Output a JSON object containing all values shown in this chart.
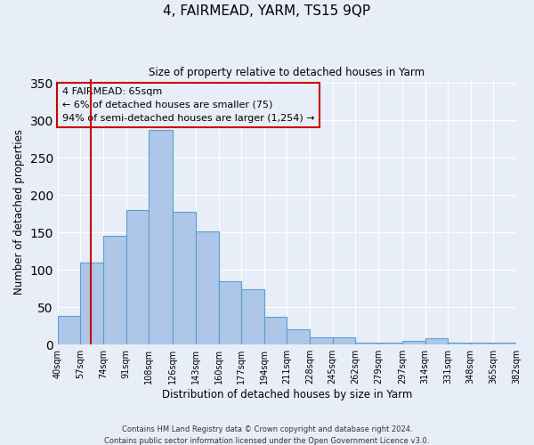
{
  "title": "4, FAIRMEAD, YARM, TS15 9QP",
  "subtitle": "Size of property relative to detached houses in Yarm",
  "xlabel": "Distribution of detached houses by size in Yarm",
  "ylabel": "Number of detached properties",
  "bin_labels": [
    "40sqm",
    "57sqm",
    "74sqm",
    "91sqm",
    "108sqm",
    "126sqm",
    "143sqm",
    "160sqm",
    "177sqm",
    "194sqm",
    "211sqm",
    "228sqm",
    "245sqm",
    "262sqm",
    "279sqm",
    "297sqm",
    "314sqm",
    "331sqm",
    "348sqm",
    "365sqm",
    "382sqm"
  ],
  "bar_heights": [
    38,
    110,
    145,
    180,
    287,
    178,
    152,
    85,
    74,
    37,
    20,
    10,
    10,
    3,
    3,
    5,
    8,
    3,
    3,
    3
  ],
  "bin_edges": [
    40,
    57,
    74,
    91,
    108,
    126,
    143,
    160,
    177,
    194,
    211,
    228,
    245,
    262,
    279,
    297,
    314,
    331,
    348,
    365,
    382
  ],
  "bar_color": "#aec6e8",
  "bar_edge_color": "#5a9fd4",
  "vline_x": 65,
  "vline_color": "#cc0000",
  "ylim": [
    0,
    355
  ],
  "yticks": [
    0,
    50,
    100,
    150,
    200,
    250,
    300,
    350
  ],
  "annotation_text": "4 FAIRMEAD: 65sqm\n← 6% of detached houses are smaller (75)\n94% of semi-detached houses are larger (1,254) →",
  "annotation_box_edgecolor": "#cc0000",
  "background_color": "#e8eef7",
  "footer_line1": "Contains HM Land Registry data © Crown copyright and database right 2024.",
  "footer_line2": "Contains public sector information licensed under the Open Government Licence v3.0."
}
